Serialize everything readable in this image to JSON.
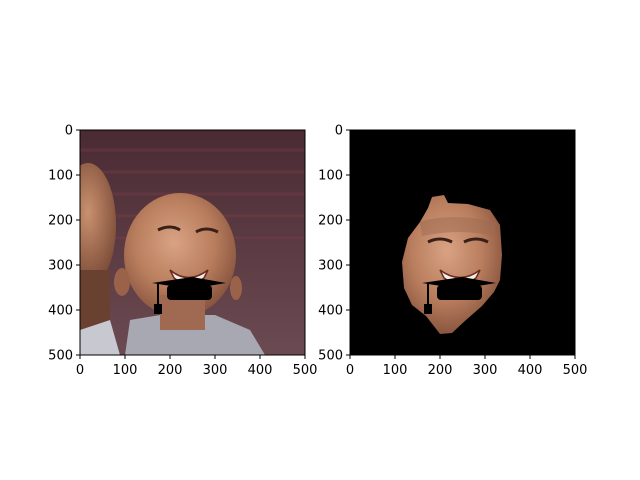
{
  "chart_data": [
    {
      "type": "image",
      "content": "photo-with-graduation-cap-overlay",
      "xlim": [
        0,
        500
      ],
      "ylim": [
        500,
        0
      ],
      "x_ticks": [
        0,
        100,
        200,
        300,
        400,
        500
      ],
      "y_ticks": [
        0,
        100,
        200,
        300,
        400,
        500
      ],
      "x_tick_labels": [
        "0",
        "100",
        "200",
        "300",
        "400",
        "500"
      ],
      "y_tick_labels": [
        "0",
        "100",
        "200",
        "300",
        "400",
        "500"
      ],
      "title": "",
      "xlabel": "",
      "ylabel": ""
    },
    {
      "type": "image",
      "content": "segmented-face-mask-on-black",
      "xlim": [
        0,
        500
      ],
      "ylim": [
        500,
        0
      ],
      "x_ticks": [
        0,
        100,
        200,
        300,
        400,
        500
      ],
      "y_ticks": [
        0,
        100,
        200,
        300,
        400,
        500
      ],
      "x_tick_labels": [
        "0",
        "100",
        "200",
        "300",
        "400",
        "500"
      ],
      "y_tick_labels": [
        "0",
        "100",
        "200",
        "300",
        "400",
        "500"
      ],
      "title": "",
      "xlabel": "",
      "ylabel": ""
    }
  ],
  "colors": {
    "background_left": "#5a3a40",
    "skin": "#c08a6a",
    "mask_background": "#000000",
    "cap": "#000000"
  }
}
